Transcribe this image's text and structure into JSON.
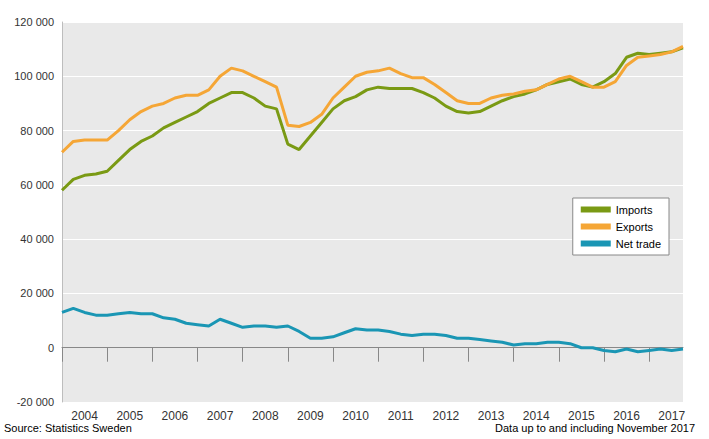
{
  "chart_data": {
    "type": "line",
    "categories": [
      null,
      null,
      "2004",
      null,
      null,
      null,
      "2005",
      null,
      null,
      null,
      "2006",
      null,
      null,
      null,
      "2007",
      null,
      null,
      null,
      "2008",
      null,
      null,
      null,
      "2009",
      null,
      null,
      null,
      "2010",
      null,
      null,
      null,
      "2011",
      null,
      null,
      null,
      "2012",
      null,
      null,
      null,
      "2013",
      null,
      null,
      null,
      "2014",
      null,
      null,
      null,
      "2015",
      null,
      null,
      null,
      "2016",
      null,
      null,
      null,
      "2017",
      null
    ],
    "series": [
      {
        "name": "Imports",
        "color": "#7a9a14",
        "values": [
          58000,
          62000,
          63500,
          64000,
          65000,
          69000,
          73000,
          76000,
          78000,
          81000,
          83000,
          85000,
          87000,
          90000,
          92000,
          94000,
          94000,
          92000,
          89000,
          88000,
          75000,
          73000,
          78000,
          83000,
          88000,
          91000,
          92500,
          95000,
          96000,
          95500,
          95500,
          95500,
          94000,
          92000,
          89000,
          87000,
          86500,
          87000,
          89000,
          91000,
          92500,
          93500,
          95000,
          97000,
          98000,
          99000,
          97000,
          96000,
          98000,
          101000,
          107000,
          108500,
          108000,
          108500,
          109000,
          110500
        ]
      },
      {
        "name": "Exports",
        "color": "#f5a636",
        "values": [
          72000,
          76000,
          76500,
          76500,
          76500,
          80000,
          84000,
          87000,
          89000,
          90000,
          92000,
          93000,
          93000,
          95000,
          100000,
          103000,
          102000,
          100000,
          98000,
          96000,
          82000,
          81500,
          83000,
          86000,
          92000,
          96000,
          100000,
          101500,
          102000,
          103000,
          101000,
          99500,
          99500,
          97000,
          94000,
          91000,
          90000,
          90000,
          92000,
          93000,
          93500,
          94500,
          95000,
          97000,
          99000,
          100000,
          98000,
          96000,
          96000,
          98000,
          104000,
          107000,
          107500,
          108000,
          109000,
          111000
        ]
      },
      {
        "name": "Net trade",
        "color": "#1a96b4",
        "values": [
          13000,
          14500,
          13000,
          12000,
          12000,
          12500,
          13000,
          12500,
          12500,
          11000,
          10500,
          9000,
          8500,
          8000,
          10500,
          9000,
          7500,
          8000,
          8000,
          7500,
          8000,
          6000,
          3500,
          3500,
          4000,
          5500,
          7000,
          6500,
          6500,
          6000,
          5000,
          4500,
          5000,
          5000,
          4500,
          3500,
          3500,
          3000,
          2500,
          2000,
          1000,
          1500,
          1500,
          2000,
          2000,
          1500,
          0,
          0,
          -1000,
          -1500,
          -500,
          -1500,
          -1000,
          -500,
          -1000,
          -500
        ]
      }
    ],
    "ylim": [
      -20000,
      120000
    ],
    "yticks": [
      {
        "value": -20000,
        "label": "-20 000"
      },
      0,
      {
        "value": 20000,
        "label": "20 000"
      },
      {
        "value": 40000,
        "label": "40 000"
      },
      {
        "value": 60000,
        "label": "60 000"
      },
      {
        "value": 80000,
        "label": "80 000"
      },
      {
        "value": 100000,
        "label": "100 000"
      },
      {
        "value": 120000,
        "label": "120 000"
      }
    ],
    "grid": true,
    "legend": "right",
    "annotations": [
      "Source: Statistics Sweden",
      "Data up to and including November 2017"
    ]
  }
}
